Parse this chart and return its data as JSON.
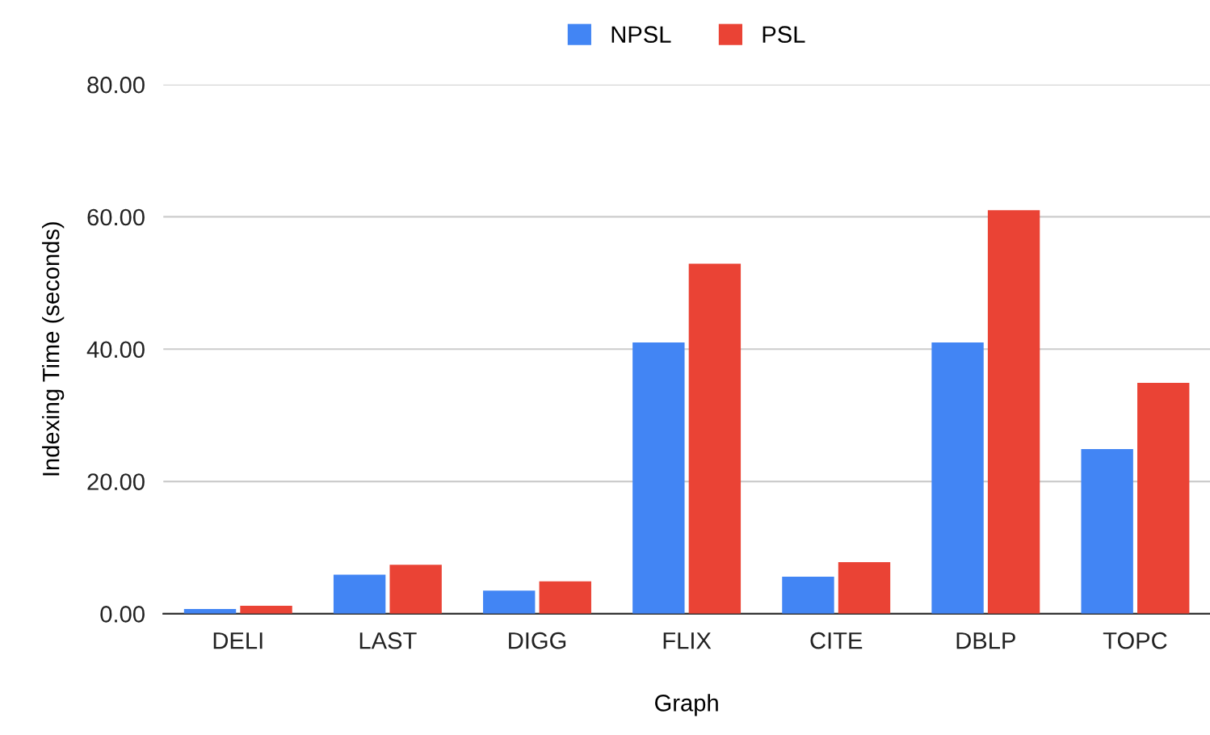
{
  "chart_data": {
    "type": "bar",
    "xlabel": "Graph",
    "ylabel": "Indexing Time (seconds)",
    "categories": [
      "DELI",
      "LAST",
      "DIGG",
      "FLIX",
      "CITE",
      "DBLP",
      "TOPC"
    ],
    "series": [
      {
        "name": "NPSL",
        "color": "#4285f4",
        "values": [
          0.7,
          5.9,
          3.5,
          41.0,
          5.6,
          41.0,
          24.9
        ]
      },
      {
        "name": "PSL",
        "color": "#ea4335",
        "values": [
          1.2,
          7.4,
          4.9,
          52.9,
          7.8,
          61.0,
          34.9
        ]
      }
    ],
    "ylim": [
      0,
      80
    ],
    "yticks": [
      {
        "value": 0,
        "label": "0.00"
      },
      {
        "value": 20,
        "label": "20.00"
      },
      {
        "value": 40,
        "label": "40.00"
      },
      {
        "value": 60,
        "label": "60.00"
      },
      {
        "value": 80,
        "label": "80.00"
      }
    ],
    "grid": "y",
    "legend": "top"
  }
}
